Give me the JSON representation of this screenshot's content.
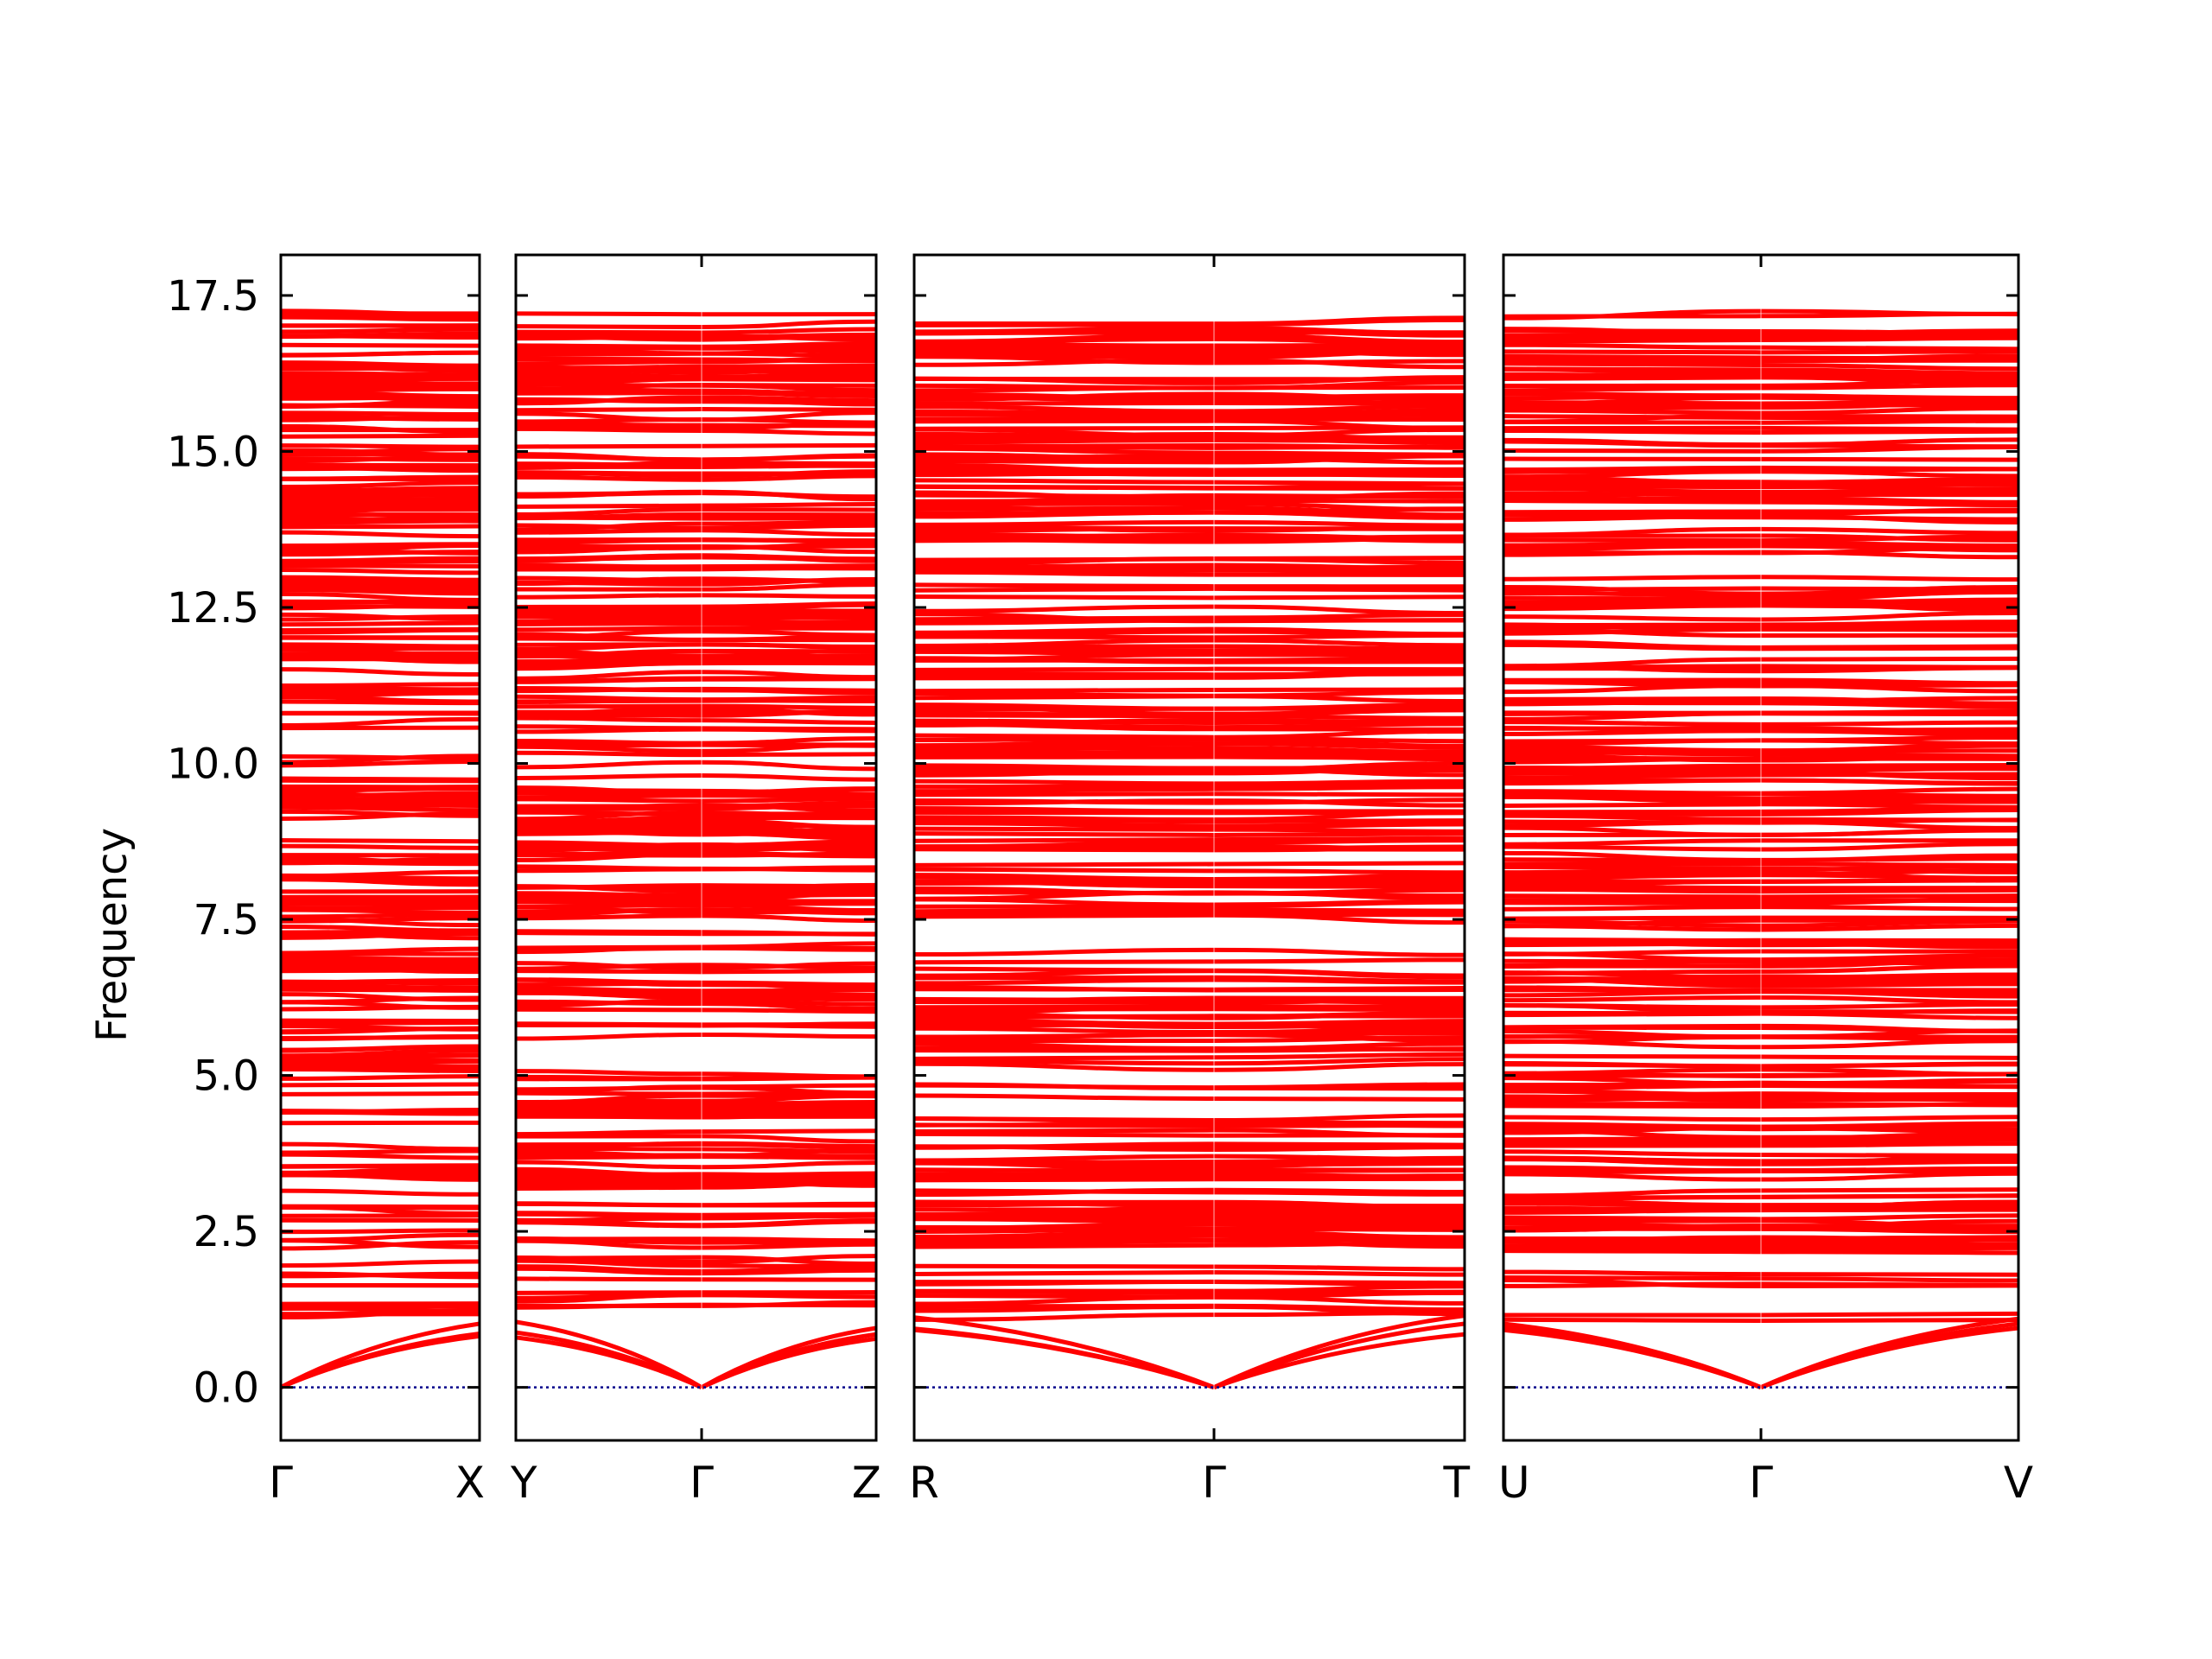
{
  "chart_data": {
    "type": "line",
    "ylabel": "Frequency",
    "ylim": [
      -0.85,
      18.15
    ],
    "yticks": [
      0.0,
      2.5,
      5.0,
      7.5,
      10.0,
      12.5,
      15.0,
      17.5
    ],
    "ytick_labels": [
      "0.0",
      "2.5",
      "5.0",
      "7.5",
      "10.0",
      "12.5",
      "15.0",
      "17.5"
    ],
    "line_color": "#ff0000",
    "zero_line_color": "#00008b",
    "panels": [
      {
        "segments": [
          [
            "Γ",
            "X"
          ]
        ],
        "point_labels": [
          "Γ",
          "X"
        ]
      },
      {
        "segments": [
          [
            "Y",
            "Γ"
          ],
          [
            "Γ",
            "Z"
          ]
        ],
        "point_labels": [
          "Y",
          "Γ",
          "Z"
        ]
      },
      {
        "segments": [
          [
            "R",
            "Γ"
          ],
          [
            "Γ",
            "T"
          ]
        ],
        "point_labels": [
          "R",
          "Γ",
          "T"
        ]
      },
      {
        "segments": [
          [
            "U",
            "Γ"
          ],
          [
            "Γ",
            "V"
          ]
        ],
        "point_labels": [
          "U",
          "Γ",
          "V"
        ]
      }
    ],
    "acoustic_branches": {
      "note_gamma_value": 0.0,
      "endpoint_values": {
        "Γ-X": [
          0.82,
          0.86,
          1.02
        ],
        "Y-Γ": [
          0.8,
          0.88,
          1.05
        ],
        "Γ-Z": [
          0.78,
          0.85,
          0.95
        ],
        "R-Γ": [
          0.92,
          0.94,
          1.12
        ],
        "Γ-T": [
          0.85,
          1.02,
          1.15
        ],
        "U-Γ": [
          0.92,
          0.98,
          1.02
        ],
        "Γ-V": [
          0.95,
          1.02,
          1.1
        ]
      }
    },
    "optical_band_range": [
      1.05,
      17.25
    ]
  }
}
